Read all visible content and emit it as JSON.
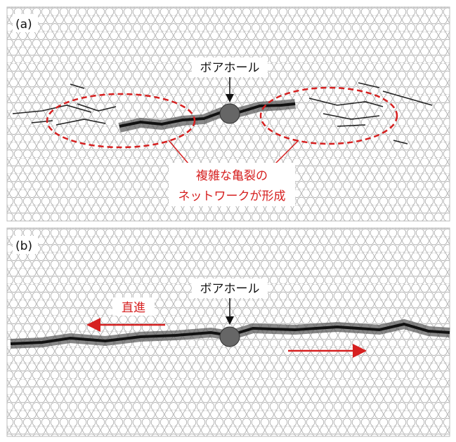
{
  "panels": [
    {
      "label": "(a)",
      "borehole_label": "ボアホール",
      "annotation": [
        "複雑な亀裂の",
        "ネットワークが形成"
      ]
    },
    {
      "label": "(b)",
      "borehole_label": "ボアホール",
      "annotation": [
        "直進"
      ]
    }
  ]
}
